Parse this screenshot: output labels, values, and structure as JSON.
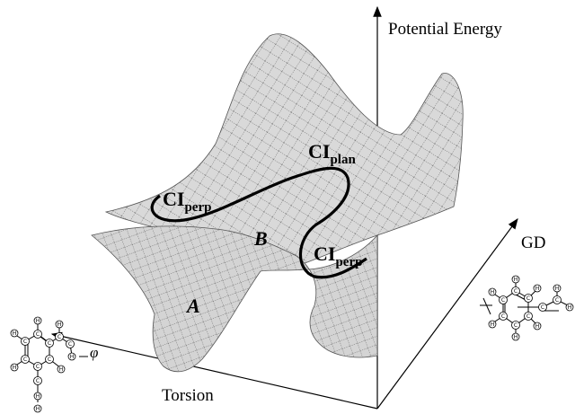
{
  "axes": {
    "vertical": "Potential Energy",
    "right": "GD",
    "left": "Torsion",
    "phi": "φ"
  },
  "surface": {
    "region_a": "A",
    "region_b": "B",
    "ci_plan": {
      "main": "CI",
      "sub": "plan"
    },
    "ci_perp_left": {
      "main": "CI",
      "sub": "perp"
    },
    "ci_perp_right": {
      "main": "CI",
      "sub": "perp"
    }
  },
  "molecules": {
    "atom_c": "C",
    "atom_h": "H"
  },
  "colors": {
    "surface_fill": "#d9d9d9",
    "mesh": "#444444",
    "curve": "#000000"
  }
}
